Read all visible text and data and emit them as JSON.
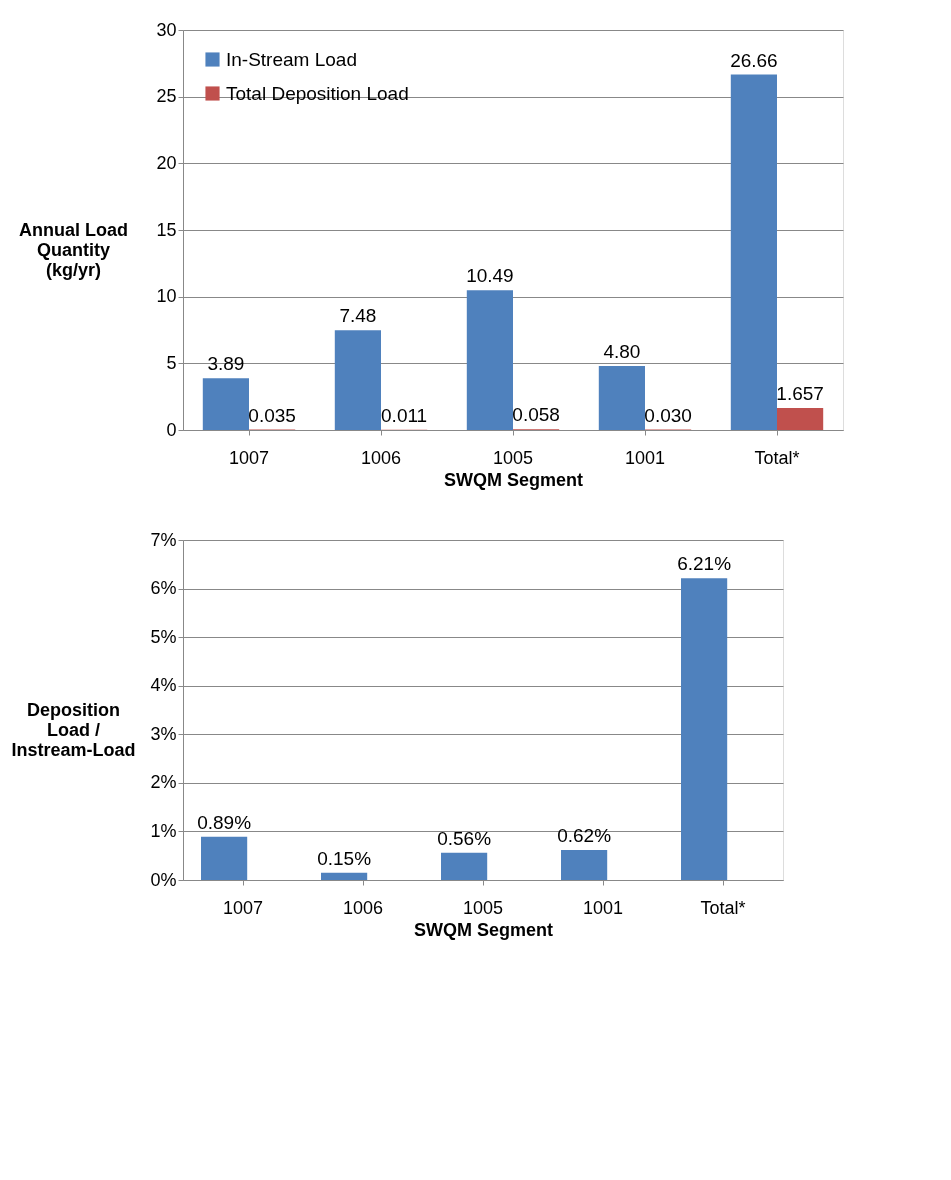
{
  "chart_data": [
    {
      "type": "bar",
      "categories": [
        "1007",
        "1006",
        "1005",
        "1001",
        "Total*"
      ],
      "xlabel": "SWQM Segment",
      "ylabel": "Annual Load\nQuantity\n(kg/yr)",
      "ylim": [
        0,
        30
      ],
      "yticks": [
        0,
        5,
        10,
        15,
        20,
        25,
        30
      ],
      "grid": "y",
      "legend": "top left",
      "series": [
        {
          "name": "In-Stream Load",
          "color": "#4f81bd",
          "values": [
            3.89,
            7.48,
            10.49,
            4.8,
            26.66
          ],
          "value_labels": [
            "3.89",
            "7.48",
            "10.49",
            "4.80",
            "26.66"
          ]
        },
        {
          "name": "Total Deposition Load",
          "color": "#c0504d",
          "values": [
            0.035,
            0.011,
            0.058,
            0.03,
            1.657
          ],
          "value_labels": [
            "0.035",
            "0.011",
            "0.058",
            "0.030",
            "1.657"
          ]
        }
      ]
    },
    {
      "type": "bar",
      "categories": [
        "1007",
        "1006",
        "1005",
        "1001",
        "Total*"
      ],
      "xlabel": "SWQM Segment",
      "ylabel": "Deposition\nLoad /\nInstream-Load",
      "ylim": [
        0,
        7
      ],
      "yticks": [
        {
          "value": 0,
          "label": "0%"
        },
        {
          "value": 1,
          "label": "1%"
        },
        {
          "value": 2,
          "label": "2%"
        },
        {
          "value": 3,
          "label": "3%"
        },
        {
          "value": 4,
          "label": "4%"
        },
        {
          "value": 5,
          "label": "5%"
        },
        {
          "value": 6,
          "label": "6%"
        },
        {
          "value": 7,
          "label": "7%"
        }
      ],
      "grid": "y",
      "series": [
        {
          "color": "#4f81bd",
          "values": [
            0.89,
            0.15,
            0.56,
            0.62,
            6.21
          ],
          "value_labels": [
            "0.89%",
            "0.15%",
            "0.56%",
            "0.62%",
            "6.21%"
          ]
        }
      ]
    }
  ]
}
